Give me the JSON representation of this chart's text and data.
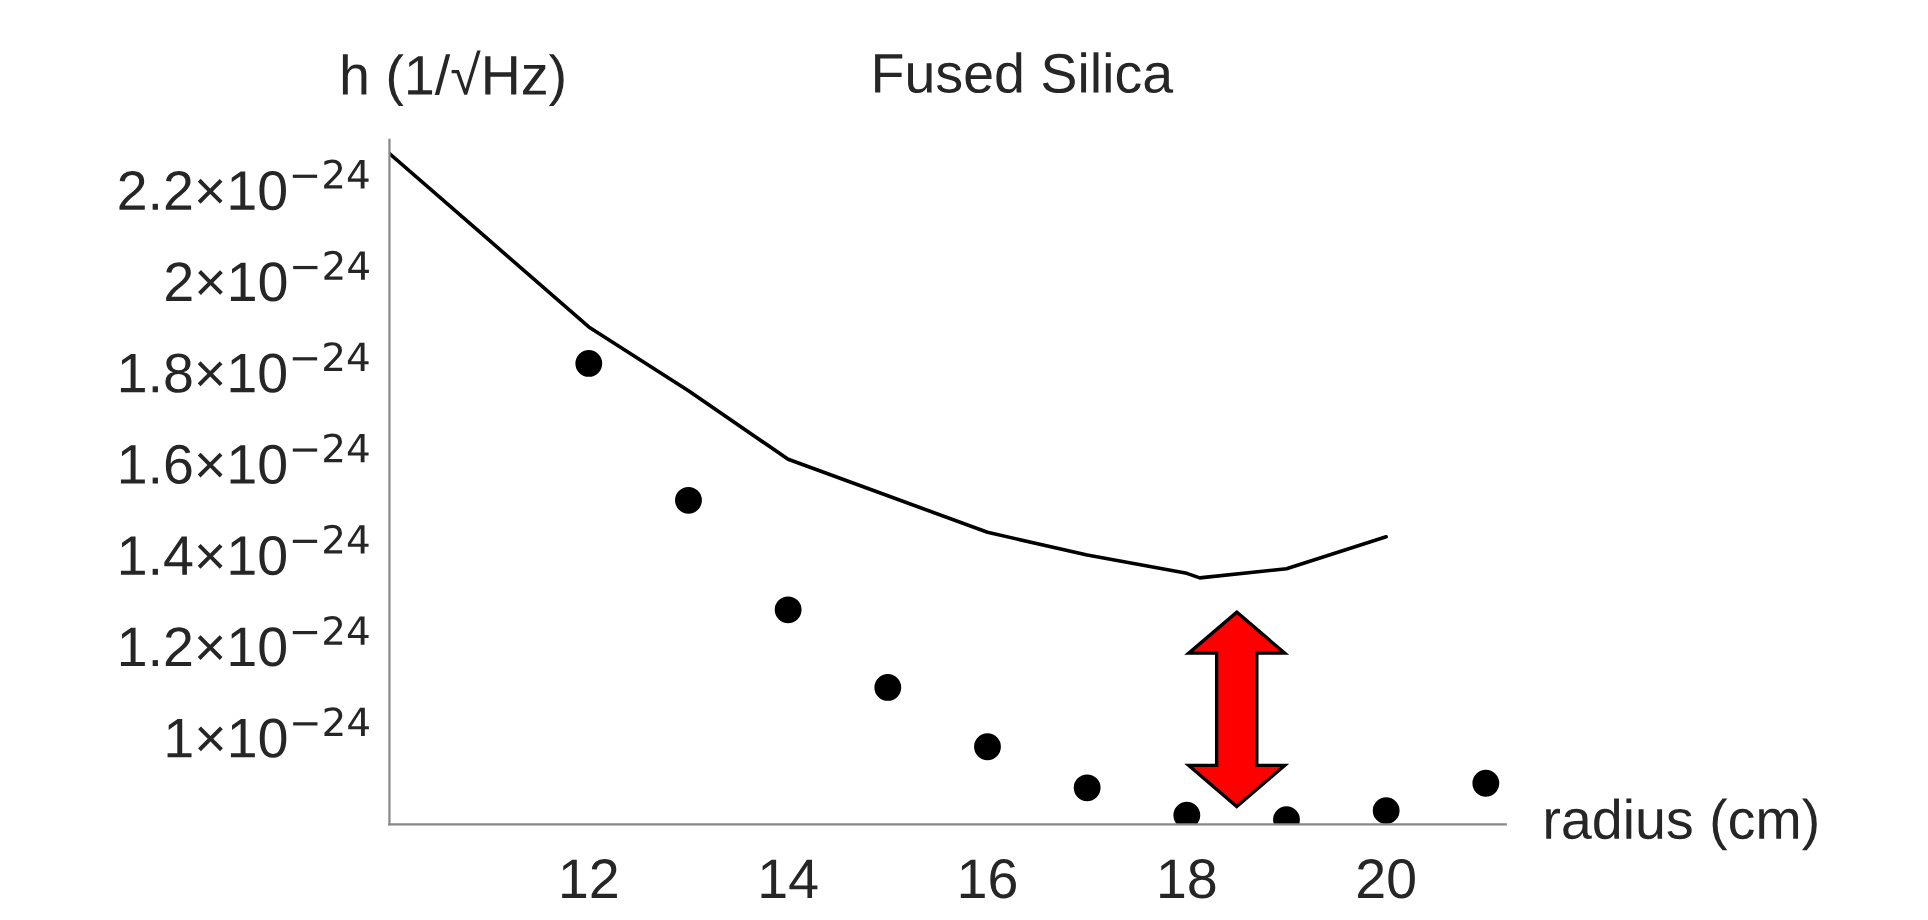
{
  "chart_data": {
    "type": "scatter",
    "title": "Fused Silica",
    "xlabel": "radius (cm)",
    "ylabel": "h (1/√Hz)",
    "xlim": [
      10,
      21.2
    ],
    "ylim": [
      8.1e-25,
      2.31e-24
    ],
    "xticks": [
      12,
      14,
      16,
      18,
      20
    ],
    "yticks": [
      {
        "value": 1e-24,
        "label": "1×10$^{−24}$"
      },
      {
        "value": 1.2e-24,
        "label": "1.2×10$^{−24}$"
      },
      {
        "value": 1.4e-24,
        "label": "1.4×10$^{−24}$"
      },
      {
        "value": 1.6e-24,
        "label": "1.6×10$^{−24}$"
      },
      {
        "value": 1.8e-24,
        "label": "1.8×10$^{−24}$"
      },
      {
        "value": 2e-24,
        "label": "2×10$^{−24}$"
      },
      {
        "value": 2.2e-24,
        "label": "2.2×10$^{−24}$"
      }
    ],
    "grid": false,
    "series": [
      {
        "type": "line",
        "color": "#000000",
        "line_style": "solid",
        "marker": "none",
        "x": [
          10,
          11,
          12,
          13,
          14,
          15,
          16,
          17,
          18,
          18.13,
          19,
          20
        ],
        "values": [
          2.28e-24,
          2.09e-24,
          1.9e-24,
          1.76e-24,
          1.61e-24,
          1.53e-24,
          1.45e-24,
          1.4e-24,
          1.36e-24,
          1.35e-24,
          1.37e-24,
          1.44e-24
        ]
      },
      {
        "color": "#000000",
        "marker": "circle",
        "x": [
          12,
          13,
          14,
          15,
          16,
          17,
          18,
          19,
          20,
          21
        ],
        "values": [
          1.82e-24,
          1.52e-24,
          1.28e-24,
          1.11e-24,
          9.8e-25,
          8.9e-25,
          8.3e-25,
          8.2e-25,
          8.4e-25,
          9e-25
        ]
      }
    ]
  }
}
